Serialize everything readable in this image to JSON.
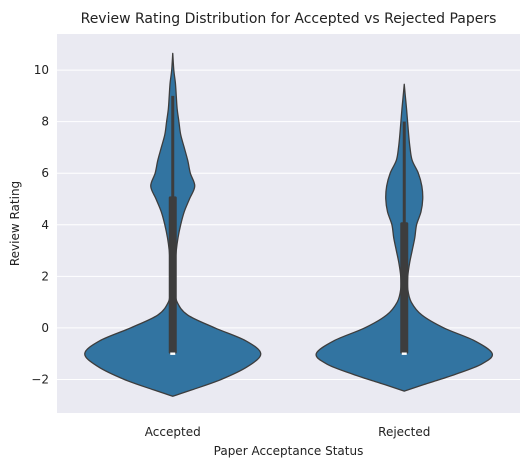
{
  "chart_data": {
    "type": "violin",
    "title": "Review Rating Distribution for Accepted vs Rejected Papers",
    "xlabel": "Paper Acceptance Status",
    "ylabel": "Review Rating",
    "categories": [
      "Accepted",
      "Rejected"
    ],
    "ylim": [
      -3.3,
      11.4
    ],
    "yticks": [
      -2,
      0,
      2,
      4,
      6,
      8,
      10
    ],
    "ytick_labels": [
      "−2",
      "0",
      "2",
      "4",
      "6",
      "8",
      "10"
    ],
    "grid": true,
    "colors": {
      "background": "#eaeaf2",
      "grid": "#ffffff",
      "violin_fill": "#3274a1",
      "violin_edge": "#3d3d3d",
      "box": "#3d3d3d",
      "median": "#ffffff"
    },
    "violins": [
      {
        "category": "Accepted",
        "range": [
          -2.65,
          10.65
        ],
        "whiskers": [
          -1.0,
          9.0
        ],
        "quartiles": [
          -1.0,
          5.1
        ],
        "median": -1.0,
        "density": [
          [
            -2.65,
            0.0
          ],
          [
            -2.4,
            0.22
          ],
          [
            -2.0,
            0.55
          ],
          [
            -1.5,
            0.85
          ],
          [
            -1.0,
            1.0
          ],
          [
            -0.5,
            0.83
          ],
          [
            0.0,
            0.48
          ],
          [
            0.5,
            0.17
          ],
          [
            1.0,
            0.05
          ],
          [
            1.5,
            0.025
          ],
          [
            2.0,
            0.028
          ],
          [
            2.5,
            0.03
          ],
          [
            3.0,
            0.04
          ],
          [
            3.5,
            0.06
          ],
          [
            4.0,
            0.09
          ],
          [
            4.5,
            0.13
          ],
          [
            5.0,
            0.19
          ],
          [
            5.5,
            0.25
          ],
          [
            6.0,
            0.2
          ],
          [
            6.5,
            0.17
          ],
          [
            7.0,
            0.13
          ],
          [
            7.5,
            0.09
          ],
          [
            8.0,
            0.07
          ],
          [
            8.5,
            0.05
          ],
          [
            9.0,
            0.04
          ],
          [
            9.5,
            0.03
          ],
          [
            10.0,
            0.012
          ],
          [
            10.65,
            0.0
          ]
        ]
      },
      {
        "category": "Rejected",
        "range": [
          -2.45,
          9.45
        ],
        "whiskers": [
          -1.0,
          8.0
        ],
        "quartiles": [
          -1.0,
          4.1
        ],
        "median": -1.0,
        "density": [
          [
            -2.45,
            0.0
          ],
          [
            -2.2,
            0.22
          ],
          [
            -1.8,
            0.58
          ],
          [
            -1.4,
            0.88
          ],
          [
            -1.0,
            1.0
          ],
          [
            -0.5,
            0.8
          ],
          [
            0.0,
            0.45
          ],
          [
            0.5,
            0.2
          ],
          [
            1.0,
            0.08
          ],
          [
            1.5,
            0.04
          ],
          [
            2.0,
            0.04
          ],
          [
            2.5,
            0.06
          ],
          [
            3.0,
            0.09
          ],
          [
            3.5,
            0.12
          ],
          [
            4.0,
            0.14
          ],
          [
            4.5,
            0.19
          ],
          [
            5.0,
            0.21
          ],
          [
            5.5,
            0.2
          ],
          [
            6.0,
            0.16
          ],
          [
            6.5,
            0.09
          ],
          [
            7.0,
            0.065
          ],
          [
            7.5,
            0.05
          ],
          [
            8.0,
            0.038
          ],
          [
            8.5,
            0.026
          ],
          [
            9.0,
            0.012
          ],
          [
            9.45,
            0.0
          ]
        ]
      }
    ]
  }
}
